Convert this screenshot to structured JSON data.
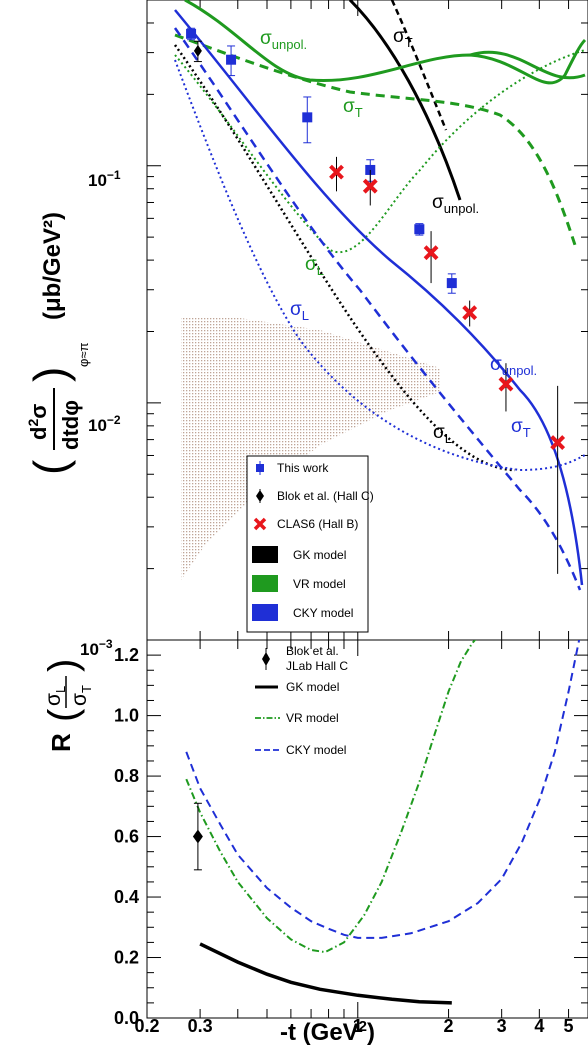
{
  "chart_data": [
    {
      "type": "scatter",
      "panel": "top",
      "ylabel": "(d²σ/dtdφ)",
      "ylabel_parts": {
        "lparen": "(",
        "d2": "d",
        "sup2": "2",
        "sigma": "σ",
        "dtdphi": "dtdφ",
        "rparen": ")",
        "sub": "φ≈π",
        "unit": "(μb/GeV²)"
      },
      "x_scale": "log",
      "y_scale": "log",
      "xlim": [
        0.2,
        5.8
      ],
      "ylim": [
        0.001,
        0.5
      ],
      "y_tick_labels": [
        {
          "value": 0.001,
          "base": "10",
          "exp": "−3"
        },
        {
          "value": 0.01,
          "base": "10",
          "exp": "−2"
        },
        {
          "value": 0.1,
          "base": "10",
          "exp": "−1"
        }
      ],
      "series": [
        {
          "name": "This work",
          "color": "#1f2fd6",
          "marker": "square",
          "points": [
            [
              0.28,
              0.36,
              0.02,
              0.02
            ],
            [
              0.38,
              0.28,
              0.04,
              0.04
            ],
            [
              0.68,
              0.16,
              0.035,
              0.035
            ],
            [
              1.1,
              0.096,
              0.01,
              0.01
            ],
            [
              1.6,
              0.054,
              0.003,
              0.003
            ],
            [
              2.05,
              0.032,
              0.003,
              0.003
            ]
          ]
        },
        {
          "name": "Blok et al. (Hall C)",
          "color": "#000000",
          "marker": "diamond",
          "points": [
            [
              0.295,
              0.305,
              0.03,
              0.03
            ]
          ]
        },
        {
          "name": "CLAS6 (Hall B)",
          "color": "#e8161c",
          "marker": "cross",
          "points": [
            [
              0.85,
              0.094,
              0.016,
              0.015
            ],
            [
              1.1,
              0.082,
              0.014,
              0.014
            ],
            [
              1.75,
              0.043,
              0.011,
              0.01
            ],
            [
              2.35,
              0.024,
              0.003,
              0.003
            ],
            [
              3.1,
              0.012,
              0.0028,
              0.0027
            ],
            [
              4.6,
              0.0068,
              0.0049,
              0.005
            ]
          ]
        }
      ],
      "models": [
        {
          "name": "GK model",
          "color": "#000000"
        },
        {
          "name": "VR model",
          "color": "#1f9a1f"
        },
        {
          "name": "CKY model",
          "color": "#1f2fd6"
        }
      ],
      "curve_labels": [
        {
          "text": "σ",
          "sub": "T",
          "color": "#000000"
        },
        {
          "text": "σ",
          "sub": "unpol.",
          "color": "#000000"
        },
        {
          "text": "σ",
          "sub": "L",
          "color": "#000000"
        },
        {
          "text": "σ",
          "sub": "unpol.",
          "color": "#1f9a1f"
        },
        {
          "text": "σ",
          "sub": "T",
          "color": "#1f9a1f"
        },
        {
          "text": "σ",
          "sub": "L",
          "color": "#1f9a1f"
        },
        {
          "text": "σ",
          "sub": "L",
          "color": "#1f2fd6"
        },
        {
          "text": "σ",
          "sub": "unpol.",
          "color": "#1f2fd6"
        },
        {
          "text": "σ",
          "sub": "T",
          "color": "#1f2fd6"
        }
      ],
      "legend": [
        "This work",
        "Blok et al. (Hall C)",
        "CLAS6 (Hall B)",
        "GK model",
        "VR model",
        "CKY model"
      ],
      "legend_position": "lower-center"
    },
    {
      "type": "line",
      "panel": "bottom",
      "xlabel": "-t (GeV²)",
      "xlabel_parts": {
        "main": "-t (GeV",
        "sup": "2",
        "end": ")"
      },
      "ylabel": "R (σL/σT)",
      "ylabel_parts": {
        "r": "R",
        "lparen": "(",
        "num": "σ",
        "num_sub": "L",
        "den": "σ",
        "den_sub": "T",
        "rparen": ")"
      },
      "x_scale": "log",
      "xlim": [
        0.2,
        5.8
      ],
      "ylim": [
        0.0,
        1.25
      ],
      "x_ticks": [
        {
          "value": 0.2,
          "label": "0.2"
        },
        {
          "value": 0.3,
          "label": "0.3"
        },
        {
          "value": 1,
          "label": "1"
        },
        {
          "value": 2,
          "label": "2"
        },
        {
          "value": 3,
          "label": "3"
        },
        {
          "value": 4,
          "label": "4"
        },
        {
          "value": 5,
          "label": "5"
        }
      ],
      "y_ticks": [
        "0.0",
        "0.2",
        "0.4",
        "0.6",
        "0.8",
        "1.0",
        "1.2"
      ],
      "series": [
        {
          "name": "Blok et al. JLab Hall C",
          "name_lines": [
            "Blok et al.",
            "JLab Hall C"
          ],
          "marker": "diamond",
          "color": "#000000",
          "points": [
            [
              0.295,
              0.6,
              0.11,
              0.11
            ]
          ]
        },
        {
          "name": "GK model",
          "style": "solid",
          "color": "#000000",
          "x": [
            0.3,
            0.4,
            0.5,
            0.6,
            0.75,
            1.0,
            1.3,
            1.6,
            2.05
          ],
          "y": [
            0.245,
            0.185,
            0.145,
            0.118,
            0.095,
            0.075,
            0.062,
            0.054,
            0.05
          ]
        },
        {
          "name": "VR model",
          "style": "dashdot",
          "color": "#1f9a1f",
          "x": [
            0.27,
            0.3,
            0.35,
            0.4,
            0.5,
            0.6,
            0.7,
            0.78,
            0.9,
            1.05,
            1.2,
            1.4,
            1.6,
            1.8,
            2.0,
            2.2,
            2.4,
            2.6
          ],
          "y": [
            0.79,
            0.68,
            0.55,
            0.45,
            0.33,
            0.26,
            0.225,
            0.218,
            0.25,
            0.34,
            0.45,
            0.62,
            0.78,
            0.94,
            1.08,
            1.18,
            1.24,
            1.28
          ]
        },
        {
          "name": "CKY model",
          "style": "dashed",
          "color": "#1f2fd6",
          "x": [
            0.27,
            0.3,
            0.35,
            0.4,
            0.5,
            0.6,
            0.7,
            0.8,
            0.9,
            1.0,
            1.2,
            1.5,
            2.0,
            2.5,
            3.0,
            3.5,
            4.0,
            4.5,
            5.0,
            5.5
          ],
          "y": [
            0.88,
            0.76,
            0.64,
            0.54,
            0.43,
            0.365,
            0.32,
            0.295,
            0.275,
            0.265,
            0.265,
            0.28,
            0.32,
            0.38,
            0.46,
            0.58,
            0.72,
            0.88,
            1.08,
            1.28
          ]
        }
      ],
      "legend": [
        "Blok et al. JLab Hall C",
        "GK model",
        "VR model",
        "CKY model"
      ],
      "legend_position": "top-center"
    }
  ]
}
